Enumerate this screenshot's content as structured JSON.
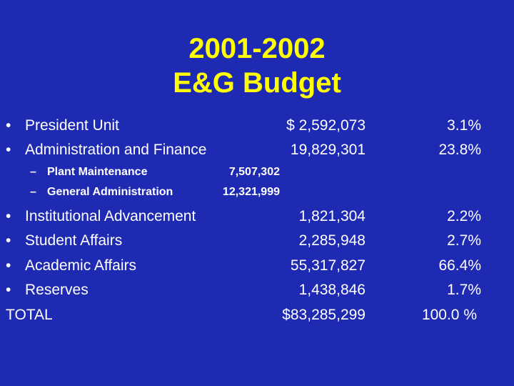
{
  "title": {
    "line1": "2001-2002",
    "line2": "E&G Budget"
  },
  "bullet_char": "•",
  "sub_dash": "–",
  "items_top": [
    {
      "label": "President Unit",
      "amount": "$   2,592,073",
      "percent": "3.1%"
    },
    {
      "label": "Administration and Finance",
      "amount": "19,829,301",
      "percent": "23.8%"
    }
  ],
  "subitems": [
    {
      "label": "Plant Maintenance",
      "amount": "7,507,302"
    },
    {
      "label": "General Administration",
      "amount": "12,321,999"
    }
  ],
  "items_bottom": [
    {
      "label": "Institutional Advancement",
      "amount": "1,821,304",
      "percent": "2.2%"
    },
    {
      "label": "Student Affairs",
      "amount": "2,285,948",
      "percent": "2.7%"
    },
    {
      "label": "Academic Affairs",
      "amount": "55,317,827",
      "percent": "66.4%"
    },
    {
      "label": "Reserves",
      "amount": "1,438,846",
      "percent": "1.7%"
    }
  ],
  "total": {
    "label": "TOTAL",
    "amount": "$83,285,299",
    "percent": "100.0 %"
  },
  "colors": {
    "background": "#1f2ab3",
    "title": "#ffff00",
    "text": "#ffffff"
  }
}
